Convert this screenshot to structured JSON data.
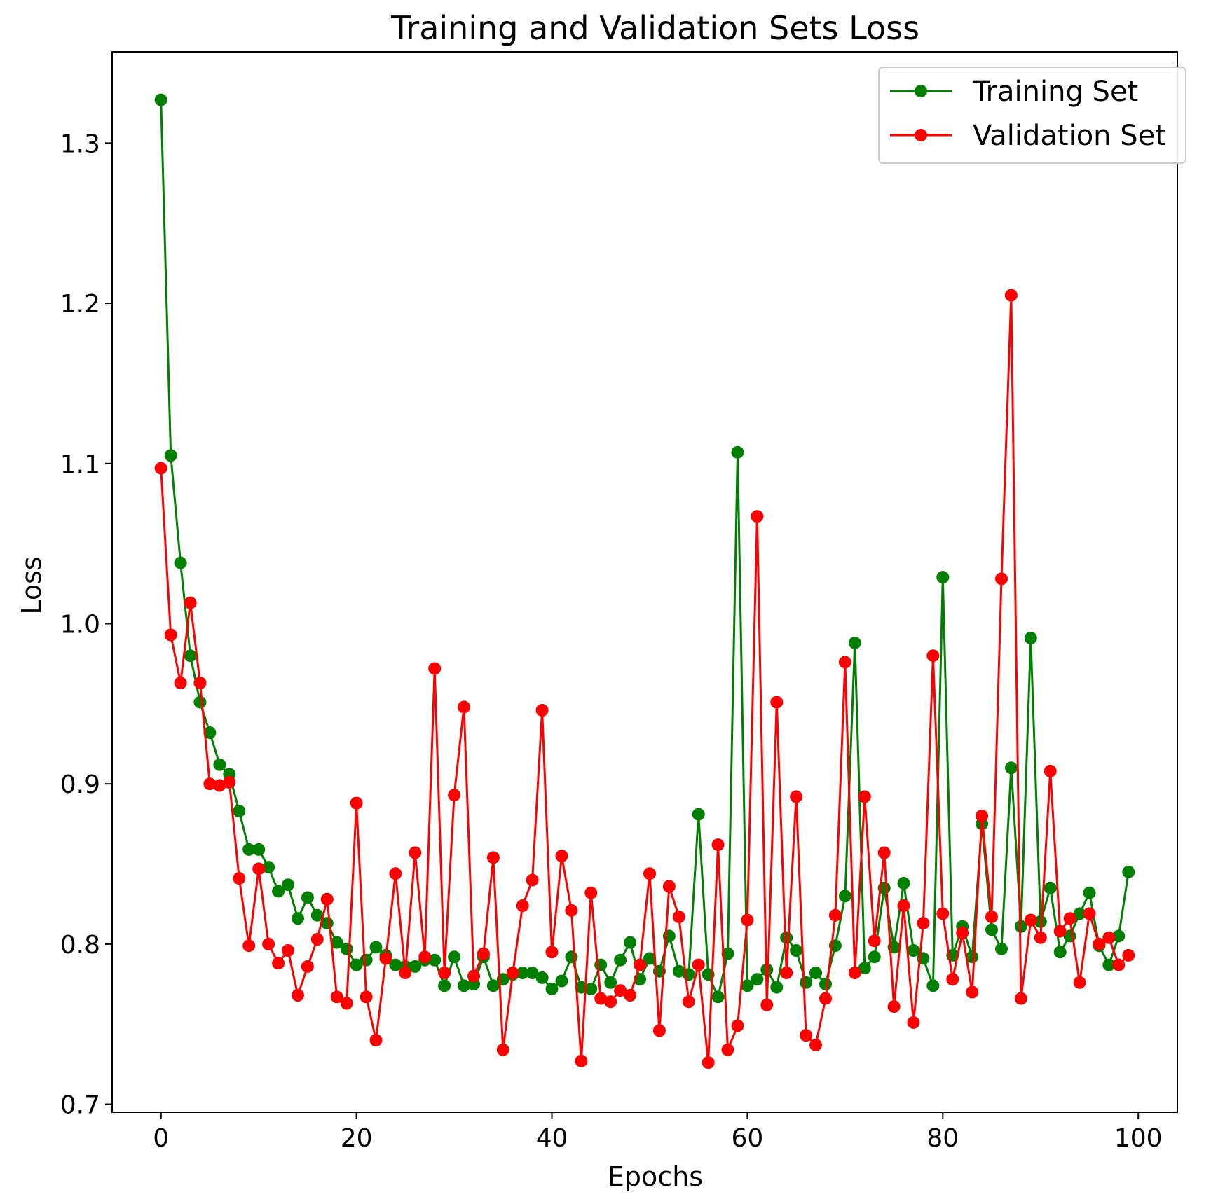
{
  "chart_data": {
    "type": "line",
    "title": "Training and Validation Sets Loss",
    "xlabel": "Epochs",
    "ylabel": "Loss",
    "xlim": [
      -5,
      104
    ],
    "ylim": [
      0.695,
      1.357
    ],
    "xticks": [
      0,
      20,
      40,
      60,
      80,
      100
    ],
    "xtick_labels": [
      "0",
      "20",
      "40",
      "60",
      "80",
      "100"
    ],
    "yticks": [
      0.7,
      0.8,
      0.9,
      1.0,
      1.1,
      1.2,
      1.3
    ],
    "ytick_labels": [
      "0.7",
      "0.8",
      "0.9",
      "1.0",
      "1.1",
      "1.2",
      "1.3"
    ],
    "grid": false,
    "legend_position": "top-right",
    "series": [
      {
        "name": "Training Set",
        "color": "#008000",
        "x": [
          0,
          1,
          2,
          3,
          4,
          5,
          6,
          7,
          8,
          9,
          10,
          11,
          12,
          13,
          14,
          15,
          16,
          17,
          18,
          19,
          20,
          21,
          22,
          23,
          24,
          25,
          26,
          27,
          28,
          29,
          30,
          31,
          32,
          33,
          34,
          35,
          36,
          37,
          38,
          39,
          40,
          41,
          42,
          43,
          44,
          45,
          46,
          47,
          48,
          49,
          50,
          51,
          52,
          53,
          54,
          55,
          56,
          57,
          58,
          59,
          60,
          61,
          62,
          63,
          64,
          65,
          66,
          67,
          68,
          69,
          70,
          71,
          72,
          73,
          74,
          75,
          76,
          77,
          78,
          79,
          80,
          81,
          82,
          83,
          84,
          85,
          86,
          87,
          88,
          89,
          90,
          91,
          92,
          93,
          94,
          95,
          96,
          97,
          98,
          99
        ],
        "values": [
          1.327,
          1.105,
          1.038,
          0.98,
          0.951,
          0.932,
          0.912,
          0.906,
          0.883,
          0.859,
          0.859,
          0.848,
          0.833,
          0.837,
          0.816,
          0.829,
          0.818,
          0.813,
          0.801,
          0.797,
          0.787,
          0.79,
          0.798,
          0.793,
          0.787,
          0.786,
          0.786,
          0.79,
          0.79,
          0.774,
          0.792,
          0.774,
          0.775,
          0.792,
          0.774,
          0.778,
          0.781,
          0.782,
          0.782,
          0.779,
          0.772,
          0.777,
          0.792,
          0.773,
          0.772,
          0.787,
          0.776,
          0.79,
          0.801,
          0.778,
          0.791,
          0.783,
          0.805,
          0.783,
          0.781,
          0.881,
          0.781,
          0.767,
          0.794,
          1.107,
          0.774,
          0.778,
          0.784,
          0.773,
          0.804,
          0.796,
          0.776,
          0.782,
          0.775,
          0.799,
          0.83,
          0.988,
          0.785,
          0.792,
          0.835,
          0.798,
          0.838,
          0.796,
          0.791,
          0.774,
          1.029,
          0.793,
          0.811,
          0.792,
          0.875,
          0.809,
          0.797,
          0.91,
          0.811,
          0.991,
          0.814,
          0.835,
          0.795,
          0.805,
          0.819,
          0.832,
          0.799,
          0.787,
          0.805,
          0.845
        ]
      },
      {
        "name": "Validation Set",
        "color": "#ff0000",
        "x": [
          0,
          1,
          2,
          3,
          4,
          5,
          6,
          7,
          8,
          9,
          10,
          11,
          12,
          13,
          14,
          15,
          16,
          17,
          18,
          19,
          20,
          21,
          22,
          23,
          24,
          25,
          26,
          27,
          28,
          29,
          30,
          31,
          32,
          33,
          34,
          35,
          36,
          37,
          38,
          39,
          40,
          41,
          42,
          43,
          44,
          45,
          46,
          47,
          48,
          49,
          50,
          51,
          52,
          53,
          54,
          55,
          56,
          57,
          58,
          59,
          60,
          61,
          62,
          63,
          64,
          65,
          66,
          67,
          68,
          69,
          70,
          71,
          72,
          73,
          74,
          75,
          76,
          77,
          78,
          79,
          80,
          81,
          82,
          83,
          84,
          85,
          86,
          87,
          88,
          89,
          90,
          91,
          92,
          93,
          94,
          95,
          96,
          97,
          98,
          99
        ],
        "values": [
          1.097,
          0.993,
          0.963,
          1.013,
          0.963,
          0.9,
          0.899,
          0.901,
          0.841,
          0.799,
          0.847,
          0.8,
          0.788,
          0.796,
          0.768,
          0.786,
          0.803,
          0.828,
          0.767,
          0.763,
          0.888,
          0.767,
          0.74,
          0.791,
          0.844,
          0.782,
          0.857,
          0.792,
          0.972,
          0.782,
          0.893,
          0.948,
          0.78,
          0.794,
          0.854,
          0.734,
          0.782,
          0.824,
          0.84,
          0.946,
          0.795,
          0.855,
          0.821,
          0.727,
          0.832,
          0.766,
          0.764,
          0.771,
          0.768,
          0.787,
          0.844,
          0.746,
          0.836,
          0.817,
          0.764,
          0.787,
          0.726,
          0.862,
          0.734,
          0.749,
          0.815,
          1.067,
          0.762,
          0.951,
          0.782,
          0.892,
          0.743,
          0.737,
          0.766,
          0.818,
          0.976,
          0.782,
          0.892,
          0.802,
          0.857,
          0.761,
          0.824,
          0.751,
          0.813,
          0.98,
          0.819,
          0.778,
          0.807,
          0.77,
          0.88,
          0.817,
          1.028,
          1.205,
          0.766,
          0.815,
          0.804,
          0.908,
          0.808,
          0.816,
          0.776,
          0.819,
          0.8,
          0.804,
          0.787,
          0.793
        ]
      }
    ]
  }
}
